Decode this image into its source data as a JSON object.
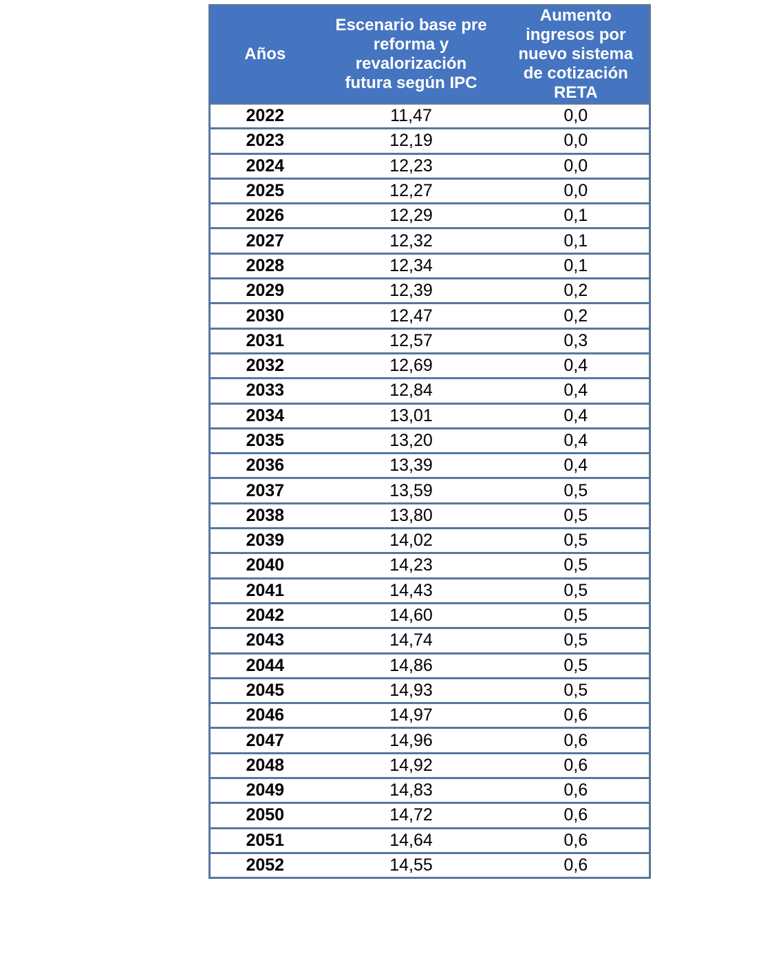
{
  "colors": {
    "header_bg": "#4574C0",
    "border": "#56779D",
    "header_text": "#FFFFFF",
    "body_text": "#000000",
    "page_bg": "#FFFFFF"
  },
  "table": {
    "header": {
      "col_year_lines": [
        "Años"
      ],
      "col_escenario_lines": [
        "Escenario base pre",
        "reforma y",
        "revalorización",
        "futura según IPC"
      ],
      "col_aumento_lines": [
        "Aumento",
        "ingresos por",
        "nuevo sistema",
        "de cotización",
        "RETA"
      ]
    },
    "columns": [
      "Años",
      "Escenario base pre reforma y revalorización futura según IPC",
      "Aumento ingresos por nuevo sistema de cotización RETA"
    ],
    "rows": [
      [
        "2022",
        "11,47",
        "0,0"
      ],
      [
        "2023",
        "12,19",
        "0,0"
      ],
      [
        "2024",
        "12,23",
        "0,0"
      ],
      [
        "2025",
        "12,27",
        "0,0"
      ],
      [
        "2026",
        "12,29",
        "0,1"
      ],
      [
        "2027",
        "12,32",
        "0,1"
      ],
      [
        "2028",
        "12,34",
        "0,1"
      ],
      [
        "2029",
        "12,39",
        "0,2"
      ],
      [
        "2030",
        "12,47",
        "0,2"
      ],
      [
        "2031",
        "12,57",
        "0,3"
      ],
      [
        "2032",
        "12,69",
        "0,4"
      ],
      [
        "2033",
        "12,84",
        "0,4"
      ],
      [
        "2034",
        "13,01",
        "0,4"
      ],
      [
        "2035",
        "13,20",
        "0,4"
      ],
      [
        "2036",
        "13,39",
        "0,4"
      ],
      [
        "2037",
        "13,59",
        "0,5"
      ],
      [
        "2038",
        "13,80",
        "0,5"
      ],
      [
        "2039",
        "14,02",
        "0,5"
      ],
      [
        "2040",
        "14,23",
        "0,5"
      ],
      [
        "2041",
        "14,43",
        "0,5"
      ],
      [
        "2042",
        "14,60",
        "0,5"
      ],
      [
        "2043",
        "14,74",
        "0,5"
      ],
      [
        "2044",
        "14,86",
        "0,5"
      ],
      [
        "2045",
        "14,93",
        "0,5"
      ],
      [
        "2046",
        "14,97",
        "0,6"
      ],
      [
        "2047",
        "14,96",
        "0,6"
      ],
      [
        "2048",
        "14,92",
        "0,6"
      ],
      [
        "2049",
        "14,83",
        "0,6"
      ],
      [
        "2050",
        "14,72",
        "0,6"
      ],
      [
        "2051",
        "14,64",
        "0,6"
      ],
      [
        "2052",
        "14,55",
        "0,6"
      ]
    ]
  },
  "chart_data": {
    "type": "table",
    "title": "",
    "columns": [
      "Años",
      "Escenario base pre reforma y revalorización futura según IPC",
      "Aumento ingresos por nuevo sistema de cotización RETA"
    ],
    "x": [
      2022,
      2023,
      2024,
      2025,
      2026,
      2027,
      2028,
      2029,
      2030,
      2031,
      2032,
      2033,
      2034,
      2035,
      2036,
      2037,
      2038,
      2039,
      2040,
      2041,
      2042,
      2043,
      2044,
      2045,
      2046,
      2047,
      2048,
      2049,
      2050,
      2051,
      2052
    ],
    "series": [
      {
        "name": "Escenario base pre reforma y revalorización futura según IPC",
        "values": [
          11.47,
          12.19,
          12.23,
          12.27,
          12.29,
          12.32,
          12.34,
          12.39,
          12.47,
          12.57,
          12.69,
          12.84,
          13.01,
          13.2,
          13.39,
          13.59,
          13.8,
          14.02,
          14.23,
          14.43,
          14.6,
          14.74,
          14.86,
          14.93,
          14.97,
          14.96,
          14.92,
          14.83,
          14.72,
          14.64,
          14.55
        ]
      },
      {
        "name": "Aumento ingresos por nuevo sistema de cotización RETA",
        "values": [
          0.0,
          0.0,
          0.0,
          0.0,
          0.1,
          0.1,
          0.1,
          0.2,
          0.2,
          0.3,
          0.4,
          0.4,
          0.4,
          0.4,
          0.4,
          0.5,
          0.5,
          0.5,
          0.5,
          0.5,
          0.5,
          0.5,
          0.5,
          0.5,
          0.6,
          0.6,
          0.6,
          0.6,
          0.6,
          0.6,
          0.6
        ]
      }
    ],
    "layout_hints": {
      "decimal_separator": ",",
      "header_bg": "#4574C0",
      "grid": "horizontal-rows-only"
    }
  }
}
